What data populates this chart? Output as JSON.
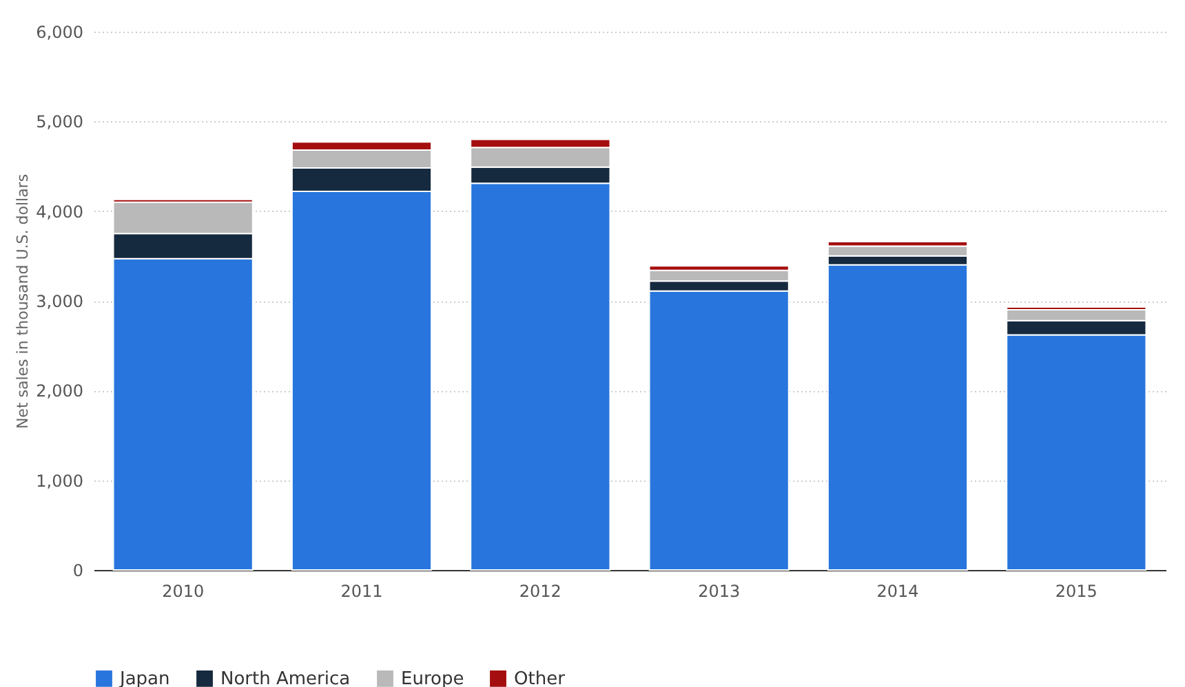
{
  "chart_data": {
    "type": "bar",
    "stacked": true,
    "ylabel": "Net sales in thousand U.S. dollars",
    "categories": [
      "2010",
      "2011",
      "2012",
      "2013",
      "2014",
      "2015"
    ],
    "series": [
      {
        "name": "Japan",
        "color": "#2876dd",
        "values": [
          3470,
          4220,
          4310,
          3110,
          3400,
          2620
        ]
      },
      {
        "name": "North America",
        "color": "#152a3f",
        "values": [
          280,
          260,
          180,
          110,
          100,
          160
        ]
      },
      {
        "name": "Europe",
        "color": "#b9b9b9",
        "values": [
          350,
          200,
          220,
          120,
          110,
          120
        ]
      },
      {
        "name": "Other",
        "color": "#a50e0e",
        "values": [
          30,
          90,
          90,
          50,
          50,
          30
        ]
      }
    ],
    "ylim": [
      0,
      6000
    ],
    "yticks": [
      0,
      {
        "value": 1000,
        "label": "1,000"
      },
      {
        "value": 2000,
        "label": "2,000"
      },
      {
        "value": 3000,
        "label": "3,000"
      },
      {
        "value": 4000,
        "label": "4,000"
      },
      {
        "value": 5000,
        "label": "5,000"
      },
      {
        "value": 6000,
        "label": "6,000"
      }
    ],
    "grid": "y",
    "legend": "bottom"
  }
}
